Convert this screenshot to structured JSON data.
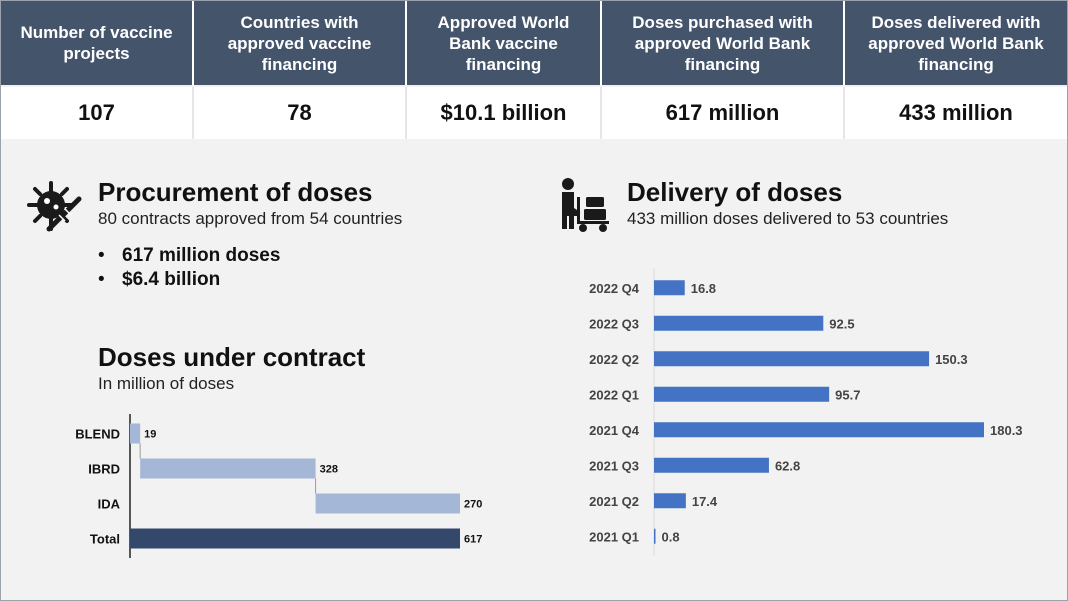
{
  "stats": {
    "headers": [
      "Number of  vaccine projects",
      "Countries with approved vaccine financing",
      "Approved World Bank vaccine financing",
      "Doses purchased with approved World Bank financing",
      "Doses delivered  with approved World Bank financing"
    ],
    "values": [
      "107",
      "78",
      "$10.1 billion",
      "617 million",
      "433 million"
    ]
  },
  "procurement": {
    "title": "Procurement of doses",
    "subtitle": "80 contracts approved from 54 countries",
    "bullets": [
      "617 million doses",
      "$6.4 billion"
    ],
    "icon": "virus-icon"
  },
  "delivery": {
    "title": "Delivery of doses",
    "subtitle": "433 million doses delivered to 53 countries",
    "icon": "hand-truck-icon"
  },
  "contract": {
    "title": "Doses under contract",
    "subtitle": "In million of doses"
  },
  "chart_data": [
    {
      "type": "bar",
      "orientation": "horizontal",
      "subtype": "waterfall",
      "title": "Doses under contract",
      "subtitle": "In million of doses",
      "categories": [
        "BLEND",
        "IBRD",
        "IDA",
        "Total"
      ],
      "values": [
        19,
        328,
        270,
        617
      ],
      "bar_colors": [
        "#a5b7d6",
        "#a5b7d6",
        "#a5b7d6",
        "#33486b"
      ],
      "xlim": [
        0,
        617
      ],
      "grid": false
    },
    {
      "type": "bar",
      "orientation": "horizontal",
      "title": "",
      "categories": [
        "2022 Q4",
        "2022 Q3",
        "2022 Q2",
        "2022 Q1",
        "2021 Q4",
        "2021 Q3",
        "2021 Q2",
        "2021 Q1"
      ],
      "values": [
        16.8,
        92.5,
        150.3,
        95.7,
        180.3,
        62.8,
        17.4,
        0.8
      ],
      "bar_color": "#4472c4",
      "xlim": [
        0,
        180.3
      ],
      "grid": false
    }
  ]
}
